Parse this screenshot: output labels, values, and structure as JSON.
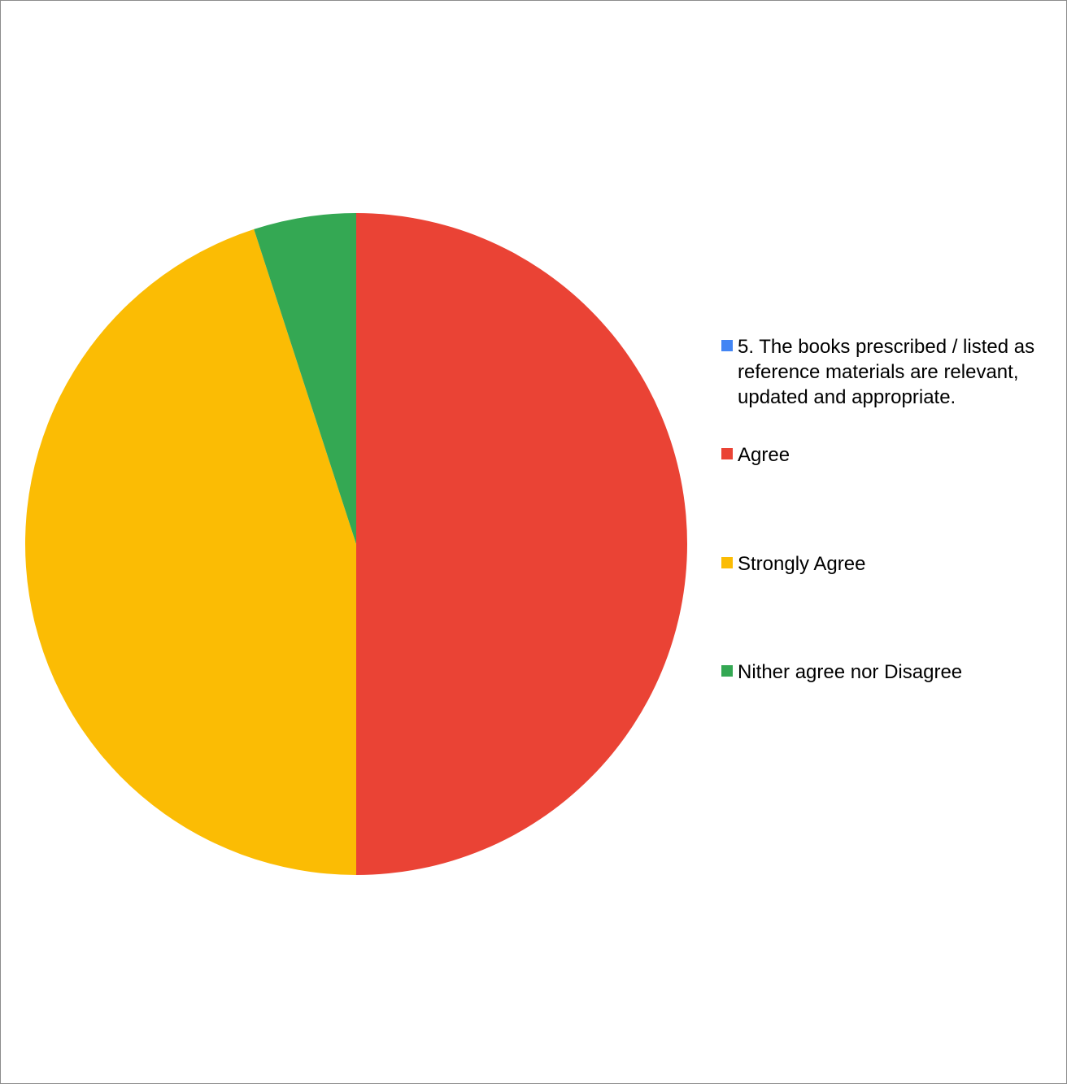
{
  "chart_data": {
    "type": "pie",
    "categories": [
      "5. The books prescribed / listed as reference materials are relevant, updated and appropriate.",
      "Agree",
      "Strongly Agree",
      "Nither agree nor Disagree"
    ],
    "values": [
      0,
      50,
      45,
      5
    ],
    "colors": [
      "#4285F4",
      "#EA4335",
      "#FBBC04",
      "#34A853"
    ],
    "legend_position": "right"
  }
}
